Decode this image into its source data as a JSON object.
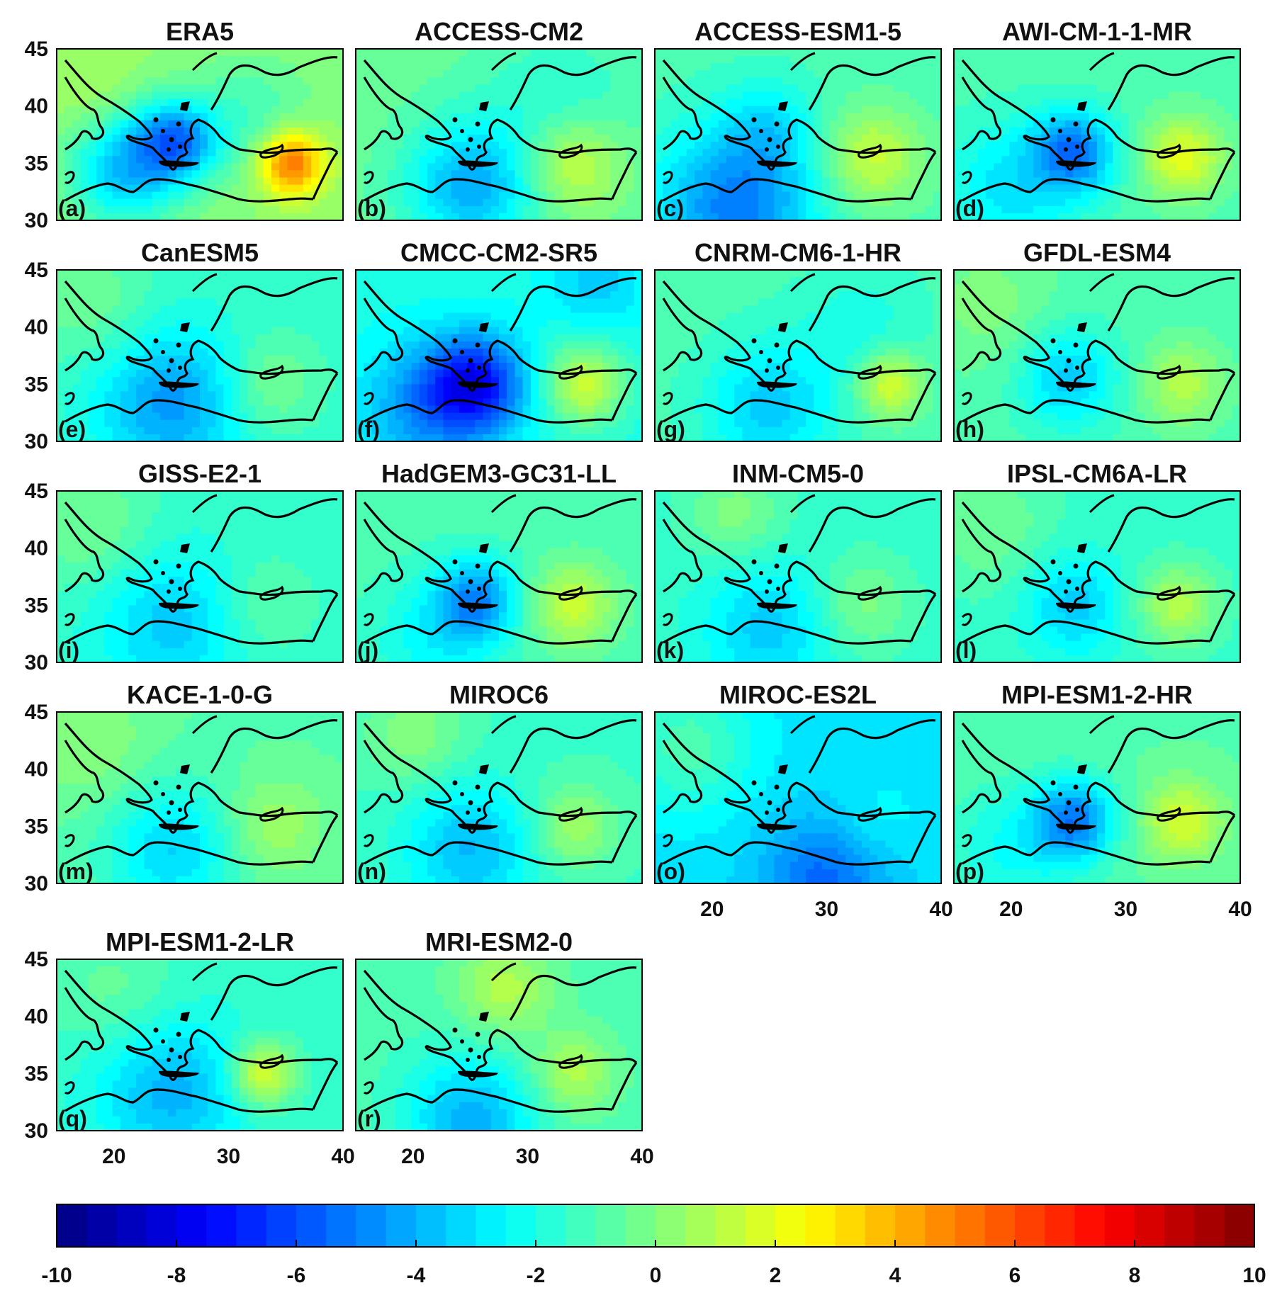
{
  "chart_data": {
    "type": "heatmap",
    "grid": false,
    "xlim": [
      15,
      40
    ],
    "ylim": [
      30,
      45
    ],
    "xticks": [
      20,
      30,
      40
    ],
    "yticks": [
      30,
      35,
      40,
      45
    ],
    "colorbar": {
      "position": "bottom",
      "range": [
        -10,
        10
      ],
      "step": 0.5,
      "ticks": [
        -10,
        -8,
        -6,
        -4,
        -2,
        0,
        2,
        4,
        6,
        8,
        10
      ]
    },
    "panels": [
      {
        "title": "ERA5",
        "label": "(a)",
        "base": 0.3,
        "anomalies": [
          {
            "lon": 25.5,
            "lat": 37,
            "amp": -4.5,
            "r": 2.5
          },
          {
            "lon": 21,
            "lat": 34.5,
            "amp": -4,
            "r": 3.5
          },
          {
            "lon": 35.5,
            "lat": 35,
            "amp": 5.5,
            "r": 2
          },
          {
            "lon": 32,
            "lat": 39,
            "amp": -1.5,
            "r": 4
          },
          {
            "lon": 18,
            "lat": 41,
            "amp": 0.6,
            "r": 3
          }
        ]
      },
      {
        "title": "ACCESS-CM2",
        "label": "(b)",
        "base": -0.5,
        "anomalies": [
          {
            "lon": 25,
            "lat": 33,
            "amp": -3.5,
            "r": 4
          },
          {
            "lon": 34,
            "lat": 35,
            "amp": 2.5,
            "r": 3
          },
          {
            "lon": 33,
            "lat": 40,
            "amp": -1.3,
            "r": 5
          }
        ]
      },
      {
        "title": "ACCESS-ESM1-5",
        "label": "(c)",
        "base": -1.0,
        "anomalies": [
          {
            "lon": 22,
            "lat": 31,
            "amp": -4,
            "r": 5
          },
          {
            "lon": 34,
            "lat": 35.5,
            "amp": 2.5,
            "r": 3
          },
          {
            "lon": 25,
            "lat": 38,
            "amp": -1.5,
            "r": 3
          }
        ]
      },
      {
        "title": "AWI-CM-1-1-MR",
        "label": "(d)",
        "base": -1.0,
        "anomalies": [
          {
            "lon": 25.5,
            "lat": 36,
            "amp": -4,
            "r": 2.5
          },
          {
            "lon": 35,
            "lat": 35.5,
            "amp": 3,
            "r": 2.5
          },
          {
            "lon": 20,
            "lat": 33,
            "amp": -2,
            "r": 4
          }
        ]
      },
      {
        "title": "CanESM5",
        "label": "(e)",
        "base": -1.5,
        "anomalies": [
          {
            "lon": 25,
            "lat": 33.5,
            "amp": -3,
            "r": 4.5
          },
          {
            "lon": 33.5,
            "lat": 35,
            "amp": 1.5,
            "r": 3
          },
          {
            "lon": 18,
            "lat": 42,
            "amp": 1.2,
            "r": 4
          }
        ]
      },
      {
        "title": "CMCC-CM2-SR5",
        "label": "(f)",
        "base": -2.0,
        "anomalies": [
          {
            "lon": 25.5,
            "lat": 35,
            "amp": -5,
            "r": 3
          },
          {
            "lon": 21,
            "lat": 33,
            "amp": -2.5,
            "r": 4
          },
          {
            "lon": 35,
            "lat": 35,
            "amp": 3.5,
            "r": 2.5
          },
          {
            "lon": 36,
            "lat": 44,
            "amp": -1.5,
            "r": 3
          }
        ]
      },
      {
        "title": "CNRM-CM6-1-HR",
        "label": "(g)",
        "base": -1.0,
        "anomalies": [
          {
            "lon": 25,
            "lat": 33,
            "amp": -2.5,
            "r": 4
          },
          {
            "lon": 35.5,
            "lat": 35,
            "amp": 3,
            "r": 2
          },
          {
            "lon": 33,
            "lat": 40,
            "amp": -1,
            "r": 4
          }
        ]
      },
      {
        "title": "GFDL-ESM4",
        "label": "(h)",
        "base": -1.0,
        "anomalies": [
          {
            "lon": 25,
            "lat": 35.5,
            "amp": -2.5,
            "r": 3
          },
          {
            "lon": 35,
            "lat": 35,
            "amp": 2,
            "r": 2.5
          },
          {
            "lon": 18,
            "lat": 42,
            "amp": 1,
            "r": 4
          }
        ]
      },
      {
        "title": "GISS-E2-1",
        "label": "(i)",
        "base": -1.5,
        "anomalies": [
          {
            "lon": 25,
            "lat": 33.5,
            "amp": -2,
            "r": 4.5
          },
          {
            "lon": 33,
            "lat": 35,
            "amp": 1,
            "r": 3
          },
          {
            "lon": 18,
            "lat": 42,
            "amp": 1.3,
            "r": 4
          }
        ]
      },
      {
        "title": "HadGEM3-GC31-LL",
        "label": "(j)",
        "base": -1.0,
        "anomalies": [
          {
            "lon": 25.5,
            "lat": 35.5,
            "amp": -3.5,
            "r": 2.5
          },
          {
            "lon": 34,
            "lat": 35,
            "amp": 2.5,
            "r": 2.5
          },
          {
            "lon": 22,
            "lat": 32,
            "amp": -1.5,
            "r": 4
          }
        ]
      },
      {
        "title": "INM-CM5-0",
        "label": "(k)",
        "base": -1.5,
        "anomalies": [
          {
            "lon": 25,
            "lat": 33,
            "amp": -2,
            "r": 4
          },
          {
            "lon": 33,
            "lat": 35,
            "amp": 1.5,
            "r": 3
          },
          {
            "lon": 22,
            "lat": 43,
            "amp": 1.5,
            "r": 3
          }
        ]
      },
      {
        "title": "IPSL-CM6A-LR",
        "label": "(l)",
        "base": -1.5,
        "anomalies": [
          {
            "lon": 25.5,
            "lat": 35,
            "amp": -2,
            "r": 3
          },
          {
            "lon": 34.5,
            "lat": 35,
            "amp": 2.5,
            "r": 2.5
          },
          {
            "lon": 18,
            "lat": 42,
            "amp": 1.2,
            "r": 4
          }
        ]
      },
      {
        "title": "KACE-1-0-G",
        "label": "(m)",
        "base": -0.8,
        "anomalies": [
          {
            "lon": 25,
            "lat": 33,
            "amp": -2.5,
            "r": 4
          },
          {
            "lon": 34,
            "lat": 35,
            "amp": 1.5,
            "r": 3
          },
          {
            "lon": 18,
            "lat": 42,
            "amp": 1,
            "r": 4
          }
        ]
      },
      {
        "title": "MIROC6",
        "label": "(n)",
        "base": -1.3,
        "anomalies": [
          {
            "lon": 25,
            "lat": 33,
            "amp": -2.5,
            "r": 4
          },
          {
            "lon": 34,
            "lat": 35,
            "amp": 2,
            "r": 2.5
          },
          {
            "lon": 20,
            "lat": 43,
            "amp": 1.5,
            "r": 3
          }
        ]
      },
      {
        "title": "MIROC-ES2L",
        "label": "(o)",
        "base": -3.0,
        "anomalies": [
          {
            "lon": 30,
            "lat": 30.5,
            "amp": -2.5,
            "r": 4
          },
          {
            "lon": 18,
            "lat": 42,
            "amp": 2,
            "r": 4
          },
          {
            "lon": 34,
            "lat": 35,
            "amp": 0.8,
            "r": 3
          }
        ]
      },
      {
        "title": "MPI-ESM1-2-HR",
        "label": "(p)",
        "base": -0.8,
        "anomalies": [
          {
            "lon": 25.5,
            "lat": 35.5,
            "amp": -4,
            "r": 2.5
          },
          {
            "lon": 35,
            "lat": 35.5,
            "amp": 2.5,
            "r": 2.5
          },
          {
            "lon": 20,
            "lat": 33,
            "amp": -1.5,
            "r": 4
          }
        ]
      },
      {
        "title": "MPI-ESM1-2-LR",
        "label": "(q)",
        "base": -1.5,
        "anomalies": [
          {
            "lon": 25,
            "lat": 33.5,
            "amp": -2.5,
            "r": 4.5
          },
          {
            "lon": 33,
            "lat": 35,
            "amp": 3.5,
            "r": 2
          },
          {
            "lon": 20,
            "lat": 42,
            "amp": 1,
            "r": 4
          }
        ]
      },
      {
        "title": "MRI-ESM2-0",
        "label": "(r)",
        "base": -1.0,
        "anomalies": [
          {
            "lon": 25,
            "lat": 31,
            "amp": -3,
            "r": 4
          },
          {
            "lon": 34,
            "lat": 35,
            "amp": 2,
            "r": 2.5
          },
          {
            "lon": 28,
            "lat": 42.5,
            "amp": 2,
            "r": 3
          }
        ]
      }
    ]
  }
}
